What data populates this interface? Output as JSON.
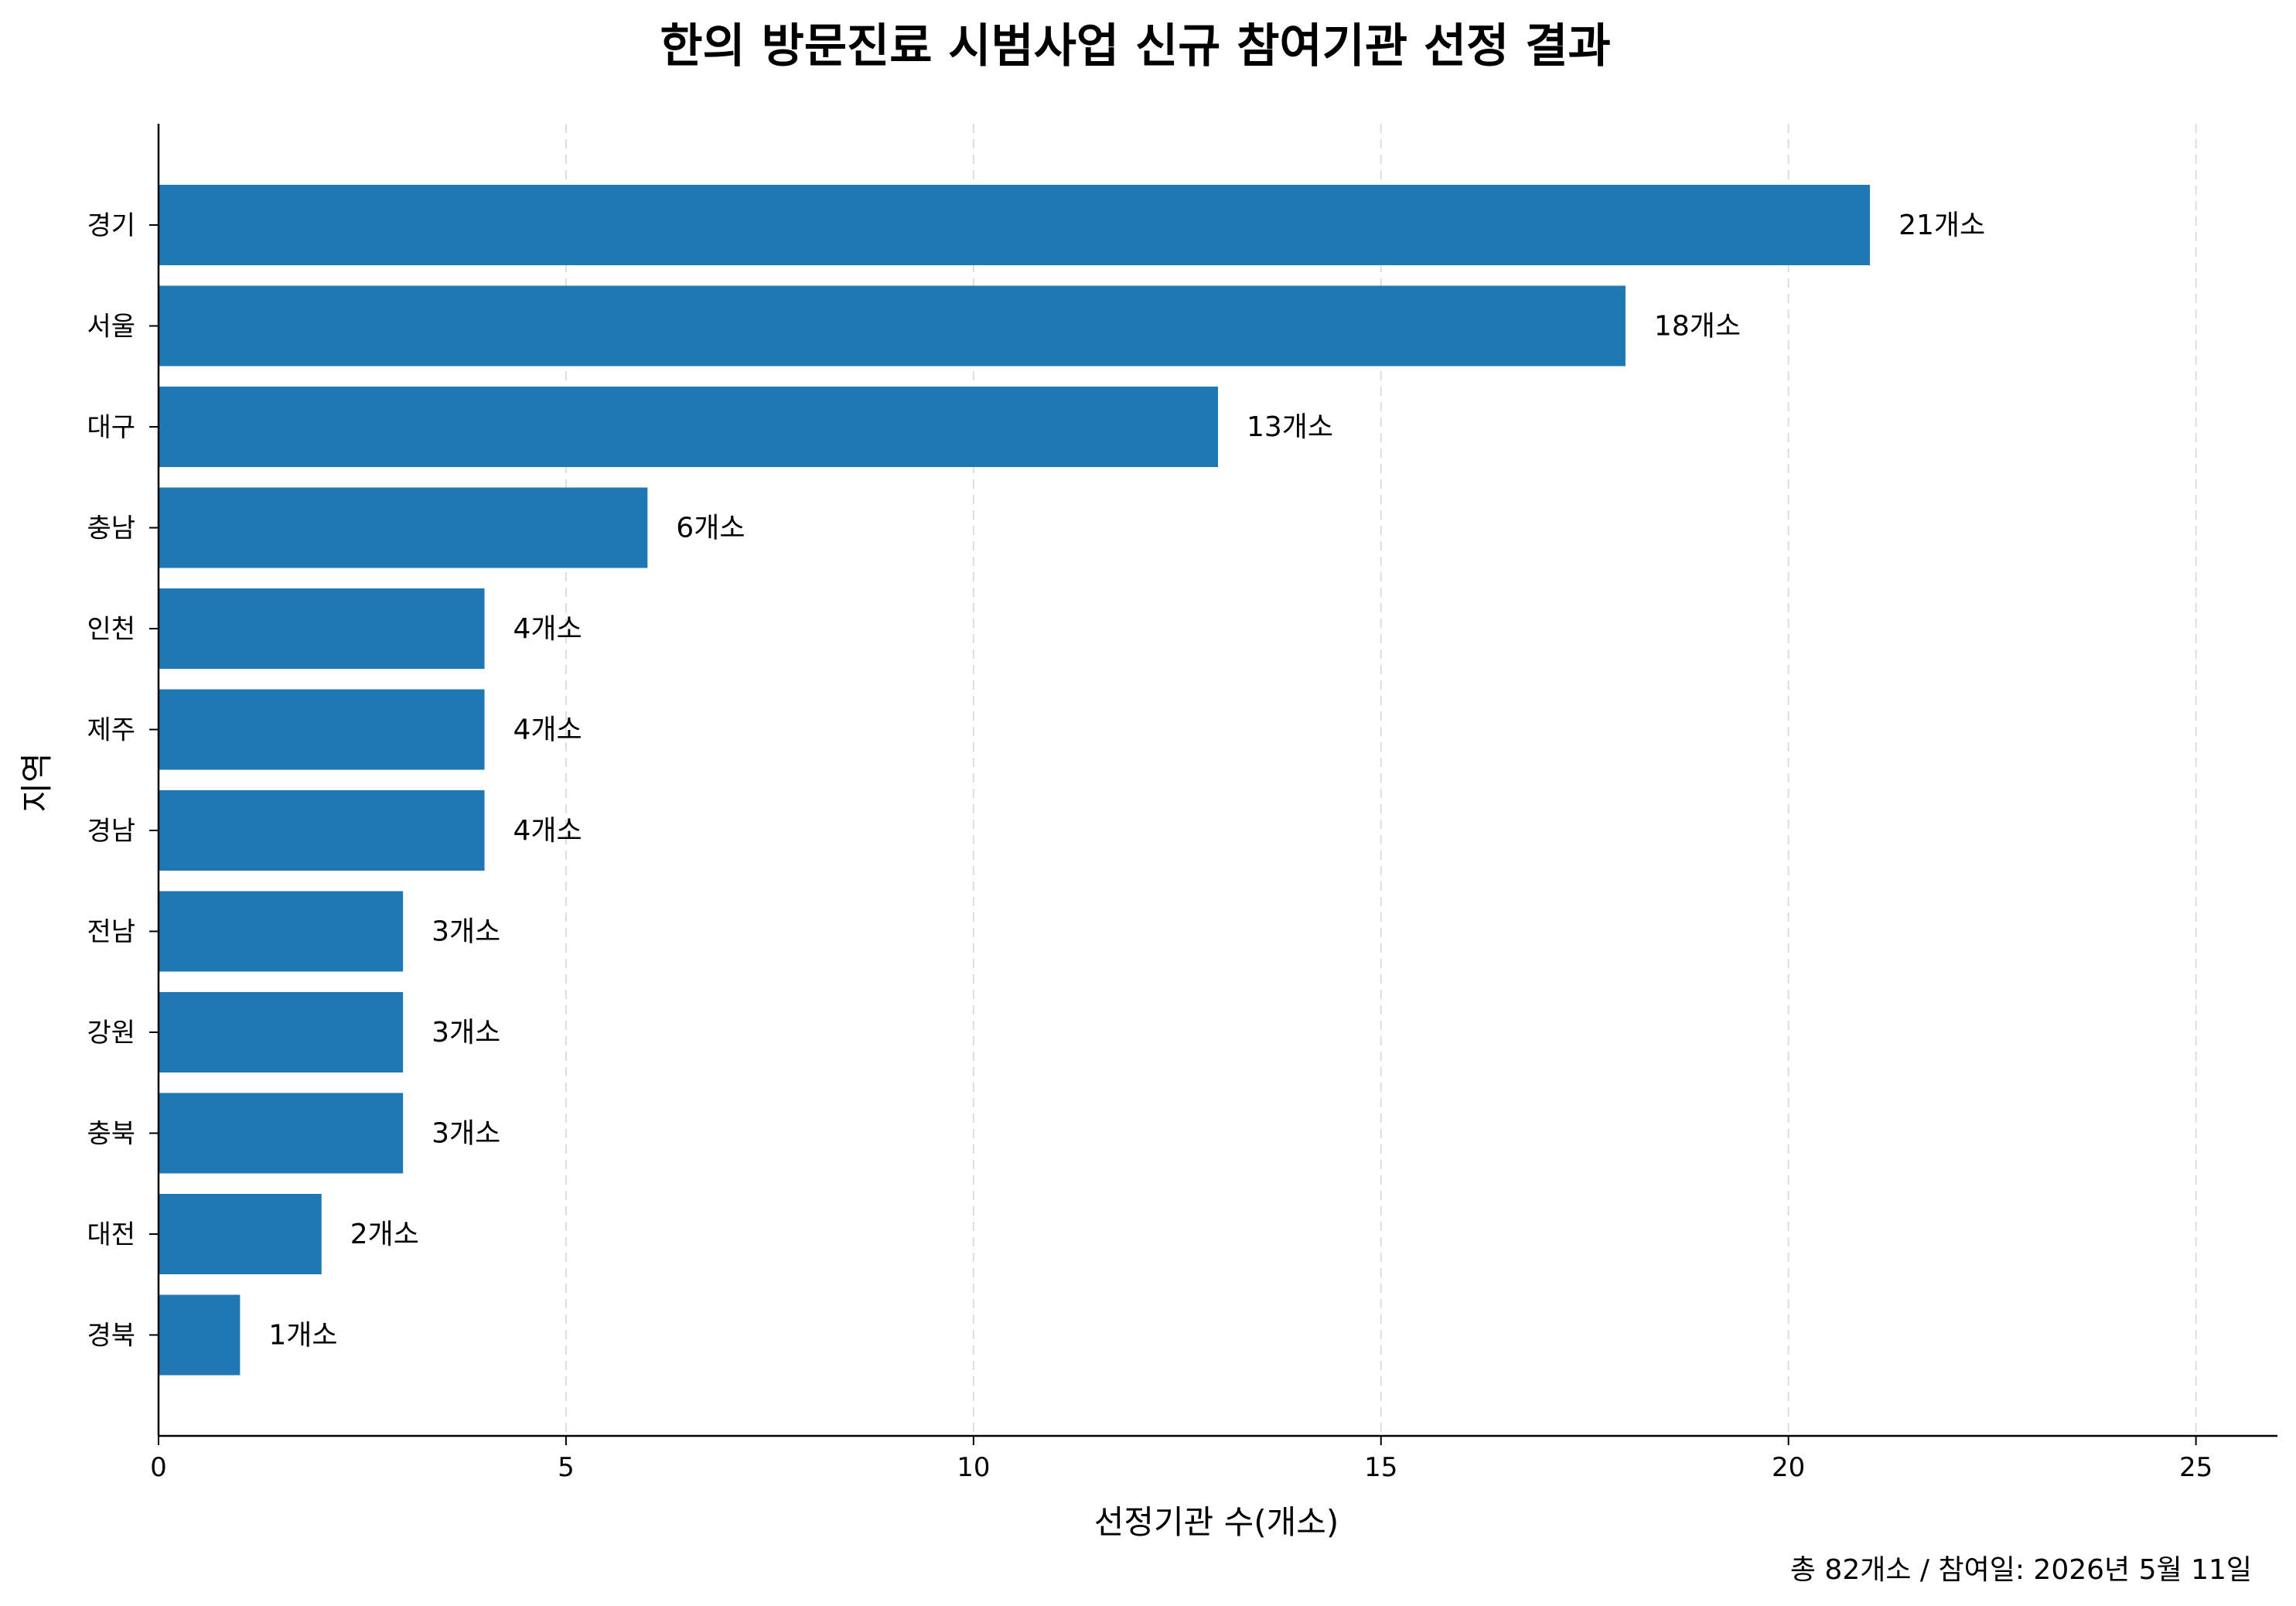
{
  "chart_data": {
    "type": "bar",
    "orientation": "horizontal",
    "title": "한의 방문진료 시범사업 신규 참여기관 선정 결과",
    "xlabel": "선정기관 수(개소)",
    "ylabel": "지역",
    "categories": [
      "경기",
      "서울",
      "대구",
      "충남",
      "인천",
      "제주",
      "경남",
      "전남",
      "강원",
      "충북",
      "대전",
      "경북"
    ],
    "values": [
      21,
      18,
      13,
      6,
      4,
      4,
      4,
      3,
      3,
      3,
      2,
      1
    ],
    "data_labels": [
      "21개소",
      "18개소",
      "13개소",
      "6개소",
      "4개소",
      "4개소",
      "4개소",
      "3개소",
      "3개소",
      "3개소",
      "2개소",
      "1개소"
    ],
    "xlim": [
      0,
      26
    ],
    "xticks": [
      0,
      5,
      10,
      15,
      20,
      25
    ],
    "grid": "x-dashed",
    "bar_color": "#1f77b4",
    "footnote": "총 82개소 / 참여일: 2026년 5월 11일"
  }
}
